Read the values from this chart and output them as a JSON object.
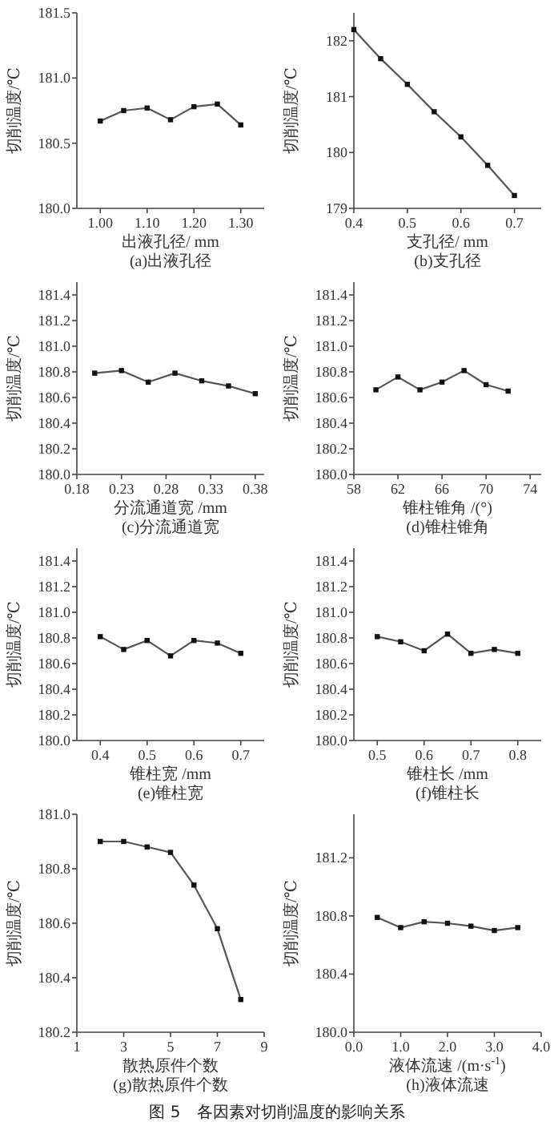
{
  "chart_data": [
    {
      "type": "line",
      "title": "(a)出液孔径",
      "xlabel": "出液孔径/ mm",
      "ylabel": "切削温度/℃",
      "x": [
        1.0,
        1.05,
        1.1,
        1.15,
        1.2,
        1.25,
        1.3
      ],
      "series": [
        {
          "color": "#555555",
          "values": [
            180.67,
            180.75,
            180.77,
            180.68,
            180.78,
            180.8,
            180.64
          ]
        }
      ],
      "xlim": [
        0.95,
        1.35
      ],
      "ylim": [
        180.0,
        181.5
      ],
      "xticks": [
        {
          "value": 1.0,
          "label": "1.00"
        },
        {
          "value": 1.1,
          "label": "1.10"
        },
        {
          "value": 1.2,
          "label": "1.20"
        },
        {
          "value": 1.3,
          "label": "1.30"
        }
      ],
      "yticks": [
        {
          "value": 180.0,
          "label": "180.0"
        },
        181.5,
        {
          "value": 180.5,
          "label": "180.5"
        },
        {
          "value": 181.0,
          "label": "181.0"
        }
      ],
      "marker": "square",
      "line_style": "solid"
    },
    {
      "type": "line",
      "title": "(b)支孔径",
      "xlabel": "支孔径/ mm",
      "ylabel": "切削温度/℃",
      "x": [
        0.4,
        0.45,
        0.5,
        0.55,
        0.6,
        0.65,
        0.7
      ],
      "series": [
        {
          "color": "#555555",
          "values": [
            182.2,
            181.68,
            181.22,
            180.73,
            180.28,
            179.77,
            179.23
          ]
        }
      ],
      "xlim": [
        0.4,
        0.75
      ],
      "ylim": [
        179.0,
        182.5
      ],
      "xticks": [
        0.4,
        0.5,
        0.6,
        0.7
      ],
      "yticks": [
        179,
        180,
        181,
        182
      ],
      "marker": "square",
      "line_style": "solid"
    },
    {
      "type": "line",
      "title": "(c)分流通道宽",
      "xlabel": "分流通道宽 /mm",
      "ylabel": "切削温度/℃",
      "x": [
        0.2,
        0.23,
        0.26,
        0.29,
        0.32,
        0.35,
        0.38
      ],
      "series": [
        {
          "color": "#555555",
          "values": [
            180.79,
            180.81,
            180.72,
            180.79,
            180.73,
            180.69,
            180.63
          ]
        }
      ],
      "xlim": [
        0.18,
        0.39
      ],
      "ylim": [
        180.0,
        181.5
      ],
      "xticks": [
        0.18,
        0.23,
        0.28,
        0.33,
        0.38
      ],
      "yticks": [
        {
          "value": 180.0,
          "label": "180.0"
        },
        180.2,
        180.4,
        180.6,
        180.8,
        {
          "value": 181.0,
          "label": "181.0"
        },
        181.2,
        181.4
      ],
      "marker": "square",
      "line_style": "solid"
    },
    {
      "type": "line",
      "title": "(d)锥柱锥角",
      "xlabel": "锥柱锥角 /(°)",
      "ylabel": "切削温度/℃",
      "x": [
        60,
        62,
        64,
        66,
        68,
        70,
        72
      ],
      "series": [
        {
          "color": "#555555",
          "values": [
            180.66,
            180.76,
            180.66,
            180.72,
            180.81,
            180.7,
            180.65
          ]
        }
      ],
      "xlim": [
        58,
        75
      ],
      "ylim": [
        180.0,
        181.5
      ],
      "xticks": [
        58,
        62,
        66,
        70,
        74
      ],
      "yticks": [
        {
          "value": 180.0,
          "label": "180.0"
        },
        180.2,
        180.4,
        180.6,
        180.8,
        {
          "value": 181.0,
          "label": "181.0"
        },
        181.2,
        181.4
      ],
      "marker": "square",
      "line_style": "solid"
    },
    {
      "type": "line",
      "title": "(e)锥柱宽",
      "xlabel": "锥柱宽 /mm",
      "ylabel": "切削温度/℃",
      "x": [
        0.4,
        0.45,
        0.5,
        0.55,
        0.6,
        0.65,
        0.7
      ],
      "series": [
        {
          "color": "#555555",
          "values": [
            180.81,
            180.71,
            180.78,
            180.66,
            180.78,
            180.76,
            180.68
          ]
        }
      ],
      "xlim": [
        0.35,
        0.75
      ],
      "ylim": [
        180.0,
        181.5
      ],
      "xticks": [
        0.4,
        0.5,
        0.6,
        0.7
      ],
      "yticks": [
        {
          "value": 180.0,
          "label": "180.0"
        },
        180.2,
        180.4,
        180.6,
        180.8,
        {
          "value": 181.0,
          "label": "181.0"
        },
        181.2,
        181.4
      ],
      "marker": "square",
      "line_style": "solid"
    },
    {
      "type": "line",
      "title": "(f)锥柱长",
      "xlabel": "锥柱长 /mm",
      "ylabel": "切削温度/℃",
      "x": [
        0.5,
        0.55,
        0.6,
        0.65,
        0.7,
        0.75,
        0.8
      ],
      "series": [
        {
          "color": "#555555",
          "values": [
            180.81,
            180.77,
            180.7,
            180.83,
            180.68,
            180.71,
            180.68
          ]
        }
      ],
      "xlim": [
        0.45,
        0.85
      ],
      "ylim": [
        180.0,
        181.5
      ],
      "xticks": [
        0.5,
        0.6,
        0.7,
        0.8
      ],
      "yticks": [
        {
          "value": 180.0,
          "label": "180.0"
        },
        180.2,
        180.4,
        180.6,
        180.8,
        {
          "value": 181.0,
          "label": "181.0"
        },
        181.2,
        181.4
      ],
      "marker": "square",
      "line_style": "solid"
    },
    {
      "type": "line",
      "title": "(g)散热原件个数",
      "xlabel": "散热原件个数",
      "ylabel": "切削温度/℃",
      "x": [
        2,
        3,
        4,
        5,
        6,
        7,
        8
      ],
      "series": [
        {
          "color": "#555555",
          "values": [
            180.9,
            180.9,
            180.88,
            180.86,
            180.74,
            180.58,
            180.32
          ]
        }
      ],
      "xlim": [
        1,
        9
      ],
      "ylim": [
        180.2,
        181.0
      ],
      "xticks": [
        1,
        3,
        5,
        7,
        9
      ],
      "yticks": [
        180.2,
        180.4,
        180.6,
        180.8,
        {
          "value": 181.0,
          "label": "181.0"
        }
      ],
      "marker": "square",
      "line_style": "solid"
    },
    {
      "type": "line",
      "title": "(h)液体流速",
      "xlabel": "液体流速 /(m·s$^{-1}$)",
      "ylabel": "切削温度/℃",
      "x": [
        0.5,
        1.0,
        1.5,
        2.0,
        2.5,
        3.0,
        3.5
      ],
      "series": [
        {
          "color": "#555555",
          "values": [
            180.79,
            180.72,
            180.76,
            180.75,
            180.73,
            180.7,
            180.72
          ]
        }
      ],
      "xlim": [
        0.0,
        4.0
      ],
      "ylim": [
        180.0,
        181.5
      ],
      "xticks": [
        {
          "value": 0,
          "label": "0.0"
        },
        {
          "value": 1,
          "label": "1.0"
        },
        {
          "value": 2,
          "label": "2.0"
        },
        {
          "value": 3,
          "label": "3.0"
        },
        {
          "value": 4,
          "label": "4.0"
        }
      ],
      "yticks": [
        {
          "value": 180.0,
          "label": "180.0"
        },
        180.4,
        180.8,
        181.2
      ],
      "marker": "square",
      "line_style": "solid",
      "annotations": [
        "图 5　各因素对切削温度的影响关系"
      ]
    }
  ]
}
